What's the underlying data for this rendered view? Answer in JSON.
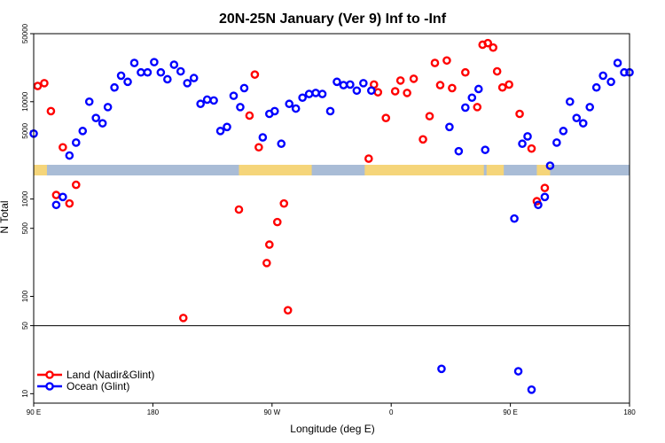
{
  "chart_data": {
    "type": "scatter",
    "title": "20N-25N January (Ver 9)   Inf to -Inf",
    "xlabel": "Longitude (deg E)",
    "ylabel": "N Total",
    "x_ticks": [
      {
        "value": 90,
        "label": "90 E"
      },
      {
        "value": 180,
        "label": "180"
      },
      {
        "value": 270,
        "label": "90 W"
      },
      {
        "value": 360,
        "label": "0"
      },
      {
        "value": 450,
        "label": "90 E"
      },
      {
        "value": 540,
        "label": "180"
      }
    ],
    "xlim": [
      90,
      540
    ],
    "y_scale": "log",
    "ylim": [
      8,
      50000
    ],
    "y_ticks": [
      {
        "value": 10,
        "label": "10"
      },
      {
        "value": 50,
        "label": "50"
      },
      {
        "value": 100,
        "label": "100"
      },
      {
        "value": 500,
        "label": "500"
      },
      {
        "value": 1000,
        "label": "1000"
      },
      {
        "value": 5000,
        "label": "5000"
      },
      {
        "value": 10000,
        "label": "10000"
      },
      {
        "value": 50000,
        "label": "50000"
      }
    ],
    "reference_line_y": 50,
    "map_band": {
      "land_color": "#f5d57a",
      "ocean_color": "#a9bcd6"
    },
    "legend_position": "bottom-left",
    "series": [
      {
        "name": "Land (Nadir&Glint)",
        "color": "#ff0000",
        "points": [
          [
            93,
            14500
          ],
          [
            98,
            15500
          ],
          [
            103,
            8000
          ],
          [
            107,
            1100
          ],
          [
            112,
            3400
          ],
          [
            117,
            900
          ],
          [
            122,
            1400
          ],
          [
            203,
            60
          ],
          [
            245,
            780
          ],
          [
            253,
            7200
          ],
          [
            257,
            19000
          ],
          [
            260,
            3400
          ],
          [
            266,
            220
          ],
          [
            268,
            340
          ],
          [
            274,
            580
          ],
          [
            279,
            900
          ],
          [
            282,
            72
          ],
          [
            343,
            2600
          ],
          [
            347,
            15000
          ],
          [
            350,
            12500
          ],
          [
            356,
            6800
          ],
          [
            363,
            12800
          ],
          [
            367,
            16500
          ],
          [
            372,
            12300
          ],
          [
            377,
            17200
          ],
          [
            384,
            4100
          ],
          [
            389,
            7100
          ],
          [
            393,
            25000
          ],
          [
            397,
            14800
          ],
          [
            402,
            26500
          ],
          [
            406,
            13800
          ],
          [
            416,
            20000
          ],
          [
            425,
            8800
          ],
          [
            429,
            38500
          ],
          [
            433,
            40000
          ],
          [
            437,
            36000
          ],
          [
            440,
            20500
          ],
          [
            444,
            14000
          ],
          [
            449,
            15000
          ],
          [
            457,
            7500
          ],
          [
            466,
            3300
          ],
          [
            470,
            950
          ],
          [
            476,
            1300
          ]
        ]
      },
      {
        "name": "Ocean (Glint)",
        "color": "#0000ff",
        "points": [
          [
            90,
            4700
          ],
          [
            107,
            870
          ],
          [
            112,
            1050
          ],
          [
            117,
            2800
          ],
          [
            122,
            3800
          ],
          [
            127,
            5000
          ],
          [
            132,
            10000
          ],
          [
            137,
            6800
          ],
          [
            142,
            6000
          ],
          [
            146,
            8800
          ],
          [
            151,
            14000
          ],
          [
            156,
            18500
          ],
          [
            161,
            16000
          ],
          [
            166,
            25000
          ],
          [
            171,
            20000
          ],
          [
            176,
            20000
          ],
          [
            181,
            25500
          ],
          [
            186,
            20000
          ],
          [
            191,
            17000
          ],
          [
            196,
            24000
          ],
          [
            201,
            20500
          ],
          [
            206,
            15500
          ],
          [
            211,
            17500
          ],
          [
            216,
            9500
          ],
          [
            221,
            10500
          ],
          [
            226,
            10300
          ],
          [
            231,
            5000
          ],
          [
            236,
            5500
          ],
          [
            241,
            11500
          ],
          [
            246,
            8800
          ],
          [
            249,
            13800
          ],
          [
            263,
            4300
          ],
          [
            268,
            7500
          ],
          [
            272,
            8000
          ],
          [
            277,
            3700
          ],
          [
            283,
            9500
          ],
          [
            288,
            8500
          ],
          [
            293,
            11000
          ],
          [
            298,
            12000
          ],
          [
            303,
            12300
          ],
          [
            308,
            12000
          ],
          [
            314,
            8000
          ],
          [
            319,
            16000
          ],
          [
            324,
            14800
          ],
          [
            329,
            15000
          ],
          [
            334,
            13000
          ],
          [
            339,
            15500
          ],
          [
            345,
            13000
          ],
          [
            398,
            18
          ],
          [
            404,
            5500
          ],
          [
            411,
            3100
          ],
          [
            416,
            8700
          ],
          [
            421,
            11000
          ],
          [
            426,
            13500
          ],
          [
            431,
            3200
          ],
          [
            453,
            630
          ],
          [
            456,
            17
          ],
          [
            459,
            3700
          ],
          [
            463,
            4400
          ],
          [
            466,
            11
          ],
          [
            471,
            870
          ],
          [
            476,
            1050
          ],
          [
            480,
            2200
          ],
          [
            485,
            3800
          ],
          [
            490,
            5000
          ],
          [
            495,
            10000
          ],
          [
            500,
            6800
          ],
          [
            505,
            6000
          ],
          [
            510,
            8800
          ],
          [
            515,
            14000
          ],
          [
            520,
            18500
          ],
          [
            526,
            16000
          ],
          [
            531,
            25000
          ],
          [
            536,
            20000
          ],
          [
            540,
            20000
          ]
        ]
      }
    ]
  }
}
